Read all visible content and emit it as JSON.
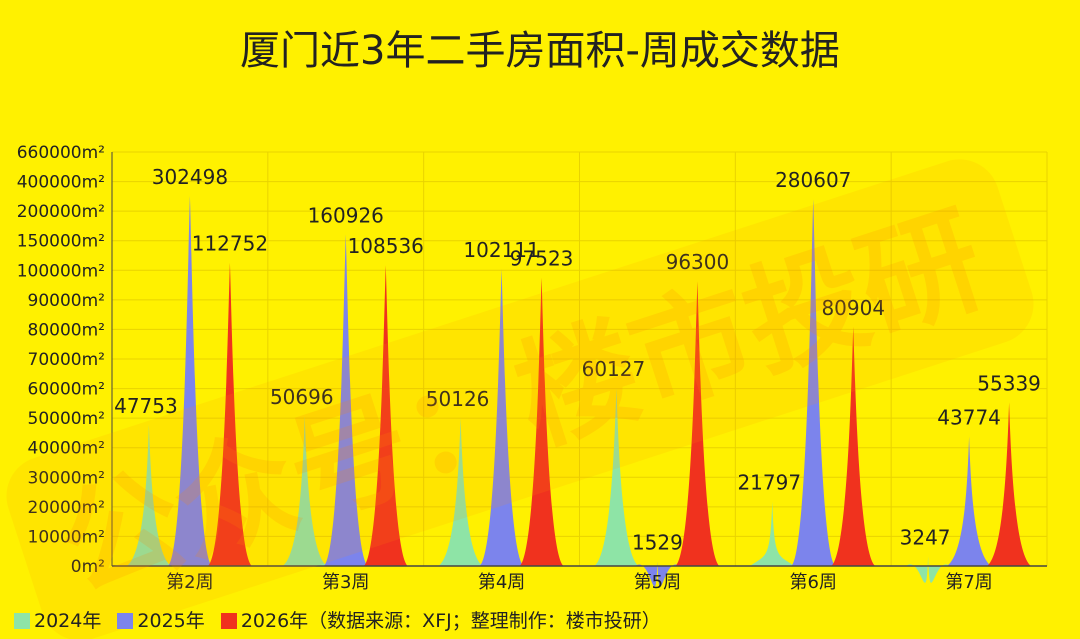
{
  "colors": {
    "background": "#FFF100",
    "s2024": "#8EE4A6",
    "s2025": "#7C84EC",
    "s2026": "#F0321E"
  },
  "watermark": "公众号：楼市投研",
  "chart_data": {
    "type": "area",
    "title": "厦门近3年二手房面积-周成交数据",
    "categories": [
      "第2周",
      "第3周",
      "第4周",
      "第5周",
      "第6周",
      "第7周"
    ],
    "y_ticks": [
      "0m²",
      "10000m²",
      "20000m²",
      "30000m²",
      "40000m²",
      "50000m²",
      "60000m²",
      "70000m²",
      "80000m²",
      "90000m²",
      "100000m²",
      "150000m²",
      "200000m²",
      "400000m²",
      "660000m²"
    ],
    "y_tick_values": [
      0,
      10000,
      20000,
      30000,
      40000,
      50000,
      60000,
      70000,
      80000,
      90000,
      100000,
      150000,
      200000,
      400000,
      660000
    ],
    "series": [
      {
        "name": "2024年",
        "values": [
          47753,
          50696,
          50126,
          60127,
          21797,
          3247
        ]
      },
      {
        "name": "2025年",
        "values": [
          302498,
          160926,
          102111,
          1529,
          280607,
          43774
        ]
      },
      {
        "name": "2026年",
        "values": [
          112752,
          108536,
          97523,
          96300,
          80904,
          55339
        ]
      }
    ],
    "legend_note": "（数据来源：XFJ；整理制作：楼市投研）",
    "legend_position": "bottom-left",
    "grid": true
  }
}
